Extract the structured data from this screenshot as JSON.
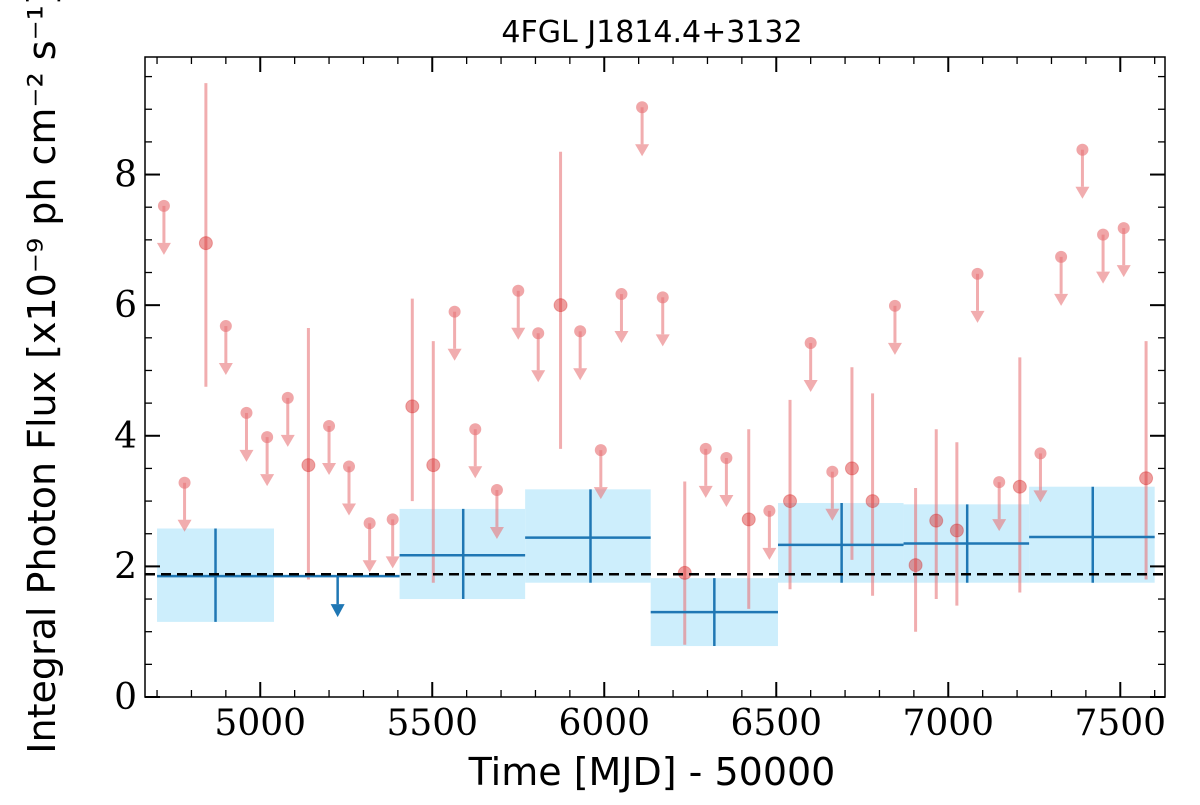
{
  "chart_data": {
    "type": "scatter",
    "title": "4FGL J1814.4+3132",
    "xlabel": "Time [MJD] - 50000",
    "ylabel": "Integral Photon Flux [x10⁻⁹ ph cm⁻² s⁻¹]",
    "xlim": [
      4665,
      7630
    ],
    "ylim": [
      0,
      9.8
    ],
    "x_ticks": [
      5000,
      5500,
      6000,
      6500,
      7000,
      7500
    ],
    "x_tick_labels": [
      "5000",
      "5500",
      "6000",
      "6500",
      "7000",
      "7500"
    ],
    "y_ticks": [
      0,
      2,
      4,
      6,
      8
    ],
    "y_tick_labels": [
      "0",
      "2",
      "4",
      "6",
      "8"
    ],
    "mean_flux": 1.88,
    "colors": {
      "short_bins": "#e8777a",
      "long_bins": "#1f77b4",
      "long_band": "#cdeefc",
      "mean_line": "#000000"
    },
    "short_bin_detections": [
      {
        "x": 4842,
        "y": 6.95,
        "lo": 4.75,
        "hi": 9.4
      },
      {
        "x": 5140,
        "y": 3.55,
        "lo": 1.8,
        "hi": 5.65
      },
      {
        "x": 5442,
        "y": 4.45,
        "lo": 3.0,
        "hi": 6.1
      },
      {
        "x": 5503,
        "y": 3.55,
        "lo": 1.75,
        "hi": 5.45
      },
      {
        "x": 5873,
        "y": 6.0,
        "lo": 3.8,
        "hi": 8.35
      },
      {
        "x": 6234,
        "y": 1.9,
        "lo": 0.8,
        "hi": 3.3
      },
      {
        "x": 6420,
        "y": 2.72,
        "lo": 1.35,
        "hi": 4.1
      },
      {
        "x": 6540,
        "y": 3.0,
        "lo": 1.65,
        "hi": 4.55
      },
      {
        "x": 6720,
        "y": 3.5,
        "lo": 2.1,
        "hi": 5.05
      },
      {
        "x": 6780,
        "y": 3.0,
        "lo": 1.55,
        "hi": 4.65
      },
      {
        "x": 6905,
        "y": 2.02,
        "lo": 1.0,
        "hi": 3.2
      },
      {
        "x": 6965,
        "y": 2.7,
        "lo": 1.5,
        "hi": 4.1
      },
      {
        "x": 7025,
        "y": 2.55,
        "lo": 1.4,
        "hi": 3.9
      },
      {
        "x": 7208,
        "y": 3.22,
        "lo": 1.6,
        "hi": 5.2
      },
      {
        "x": 7575,
        "y": 3.35,
        "lo": 1.8,
        "hi": 5.45
      }
    ],
    "short_bin_upper_limits": [
      {
        "x": 4720,
        "y": 7.52
      },
      {
        "x": 4780,
        "y": 3.28
      },
      {
        "x": 4900,
        "y": 5.68
      },
      {
        "x": 4960,
        "y": 4.35
      },
      {
        "x": 5020,
        "y": 3.98
      },
      {
        "x": 5080,
        "y": 4.58
      },
      {
        "x": 5200,
        "y": 4.15
      },
      {
        "x": 5258,
        "y": 3.53
      },
      {
        "x": 5318,
        "y": 2.66
      },
      {
        "x": 5385,
        "y": 2.72
      },
      {
        "x": 5565,
        "y": 5.9
      },
      {
        "x": 5625,
        "y": 4.1
      },
      {
        "x": 5688,
        "y": 3.17
      },
      {
        "x": 5750,
        "y": 6.22
      },
      {
        "x": 5808,
        "y": 5.57
      },
      {
        "x": 5930,
        "y": 5.6
      },
      {
        "x": 5990,
        "y": 3.78
      },
      {
        "x": 6050,
        "y": 6.17
      },
      {
        "x": 6110,
        "y": 9.03
      },
      {
        "x": 6170,
        "y": 6.12
      },
      {
        "x": 6295,
        "y": 3.8
      },
      {
        "x": 6355,
        "y": 3.66
      },
      {
        "x": 6480,
        "y": 2.85
      },
      {
        "x": 6600,
        "y": 5.42
      },
      {
        "x": 6663,
        "y": 3.45
      },
      {
        "x": 6845,
        "y": 5.99
      },
      {
        "x": 7085,
        "y": 6.48
      },
      {
        "x": 7148,
        "y": 3.29
      },
      {
        "x": 7268,
        "y": 3.73
      },
      {
        "x": 7328,
        "y": 6.74
      },
      {
        "x": 7390,
        "y": 8.38
      },
      {
        "x": 7450,
        "y": 7.08
      },
      {
        "x": 7510,
        "y": 7.18
      }
    ],
    "long_bin_detections": [
      {
        "x0": 4700,
        "x1": 5040,
        "xc": 4870,
        "y": 1.85,
        "lo": 1.15,
        "hi": 2.58
      },
      {
        "x0": 5405,
        "x1": 5770,
        "xc": 5590,
        "y": 2.17,
        "lo": 1.5,
        "hi": 2.88
      },
      {
        "x0": 5770,
        "x1": 6135,
        "xc": 5960,
        "y": 2.44,
        "lo": 1.75,
        "hi": 3.18
      },
      {
        "x0": 6135,
        "x1": 6505,
        "xc": 6320,
        "y": 1.3,
        "lo": 0.78,
        "hi": 1.82
      },
      {
        "x0": 6505,
        "x1": 6870,
        "xc": 6690,
        "y": 2.33,
        "lo": 1.75,
        "hi": 2.97
      },
      {
        "x0": 6870,
        "x1": 7235,
        "xc": 7055,
        "y": 2.35,
        "lo": 1.75,
        "hi": 2.95
      },
      {
        "x0": 7235,
        "x1": 7600,
        "xc": 7420,
        "y": 2.45,
        "lo": 1.75,
        "hi": 3.22
      }
    ],
    "long_bin_upper_limits": [
      {
        "x0": 5040,
        "x1": 5405,
        "xc": 5225,
        "y": 1.85
      }
    ]
  }
}
